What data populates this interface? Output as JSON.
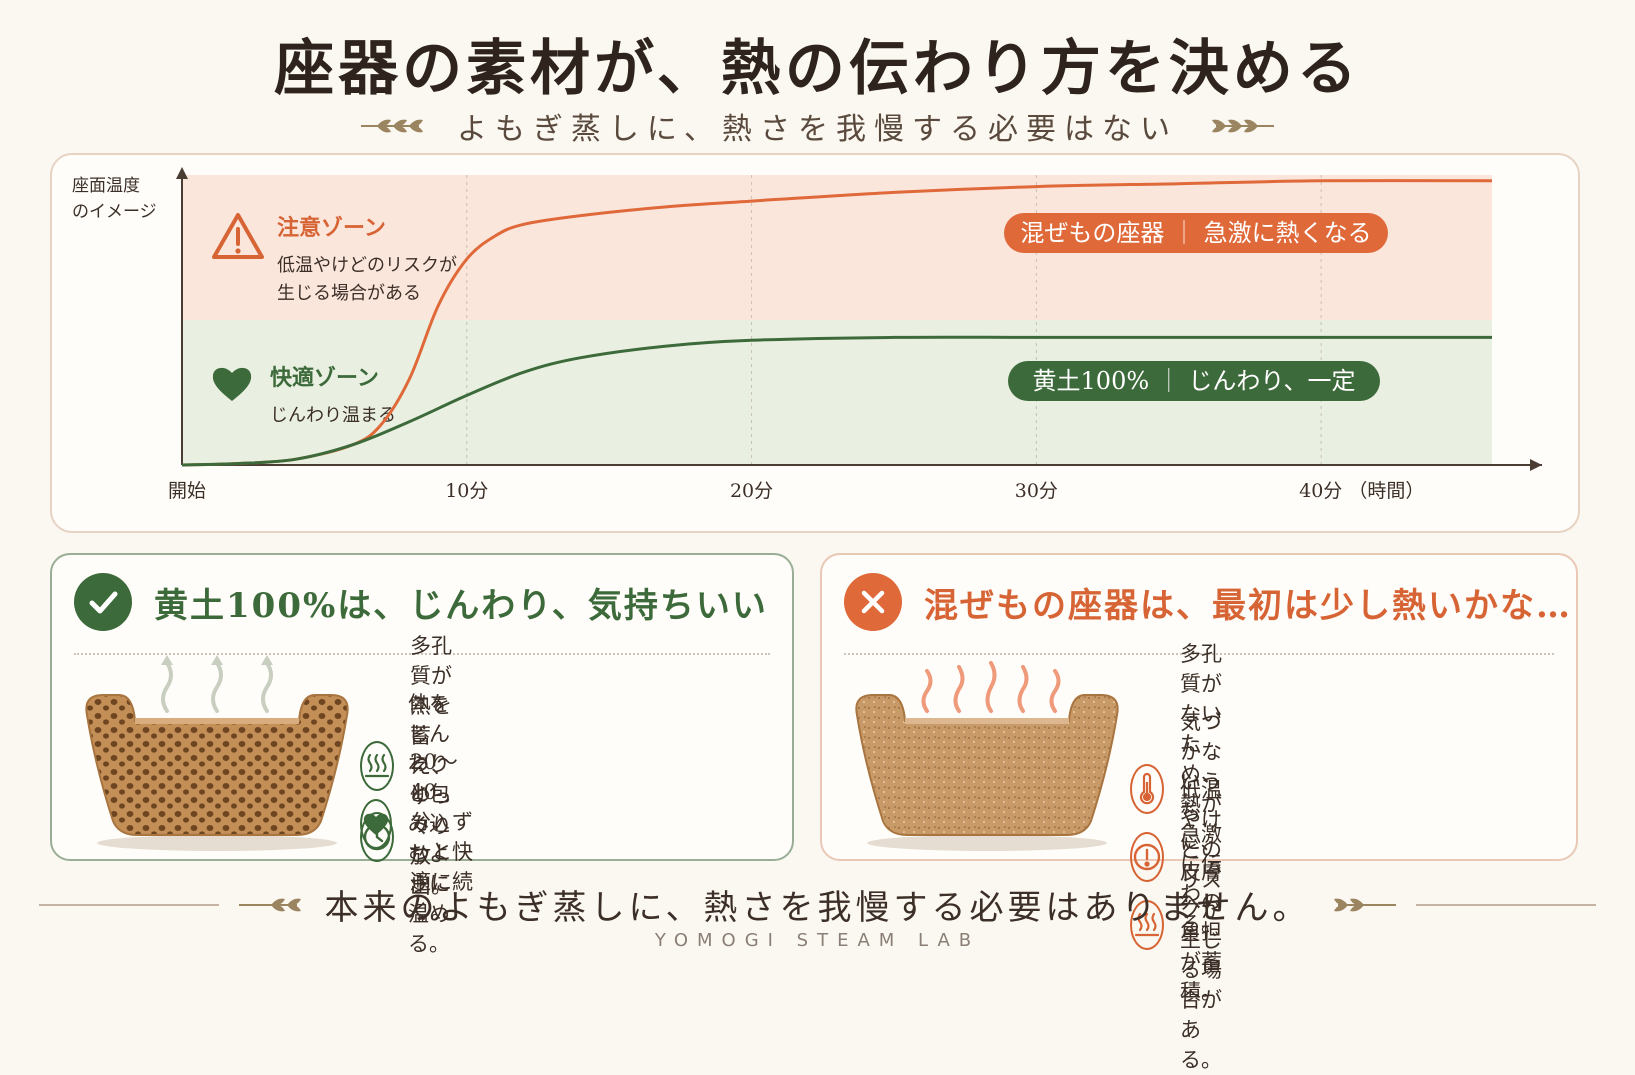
{
  "header": {
    "title": "座器の素材が、熱の伝わり方を決める",
    "subtitle": "よもぎ蒸しに、熱さを我慢する必要はない"
  },
  "colors": {
    "accent_orange": "#e0693a",
    "accent_green": "#3d6a3a",
    "caution_zone": "#fbe6dc",
    "comfort_zone": "#e9f0e2"
  },
  "chart_data": {
    "type": "line",
    "ylabel": "座面温度\nのイメージ",
    "xlabel": "（時間）",
    "x_ticks": [
      "開始",
      "10分",
      "20分",
      "30分",
      "40分"
    ],
    "x_tick_values": [
      0,
      10,
      20,
      30,
      40
    ],
    "xlim": [
      0,
      46
    ],
    "ylim": [
      0,
      100
    ],
    "grid": "vertical-dashed",
    "zones": [
      {
        "name": "注意ゾーン",
        "desc": "低温やけどのリスクが\n生じる場合がある",
        "from": 50,
        "to": 100,
        "icon": "warning-icon"
      },
      {
        "name": "快適ゾーン",
        "desc": "じんわり温まる",
        "from": 0,
        "to": 50,
        "icon": "heart-icon"
      }
    ],
    "series": [
      {
        "name": "混ぜもの座器",
        "tag": "急激に熱くなる",
        "color": "#e0693a",
        "x": [
          0,
          2,
          4,
          6,
          7,
          8,
          9,
          10,
          11,
          12,
          14,
          17,
          20,
          25,
          30,
          35,
          40,
          46
        ],
        "y": [
          0,
          0.5,
          2,
          7,
          14,
          30,
          55,
          71,
          79,
          83,
          86,
          89,
          91,
          94,
          96,
          97,
          98,
          98
        ]
      },
      {
        "name": "黄土100%",
        "tag": "じんわり、一定",
        "color": "#3d6a3a",
        "x": [
          0,
          2,
          4,
          6,
          8,
          10,
          12,
          14,
          17,
          20,
          25,
          30,
          35,
          40,
          46
        ],
        "y": [
          0,
          0.5,
          2,
          7,
          15,
          24,
          32,
          37,
          41,
          43,
          44,
          44,
          44,
          44,
          44
        ]
      }
    ]
  },
  "left_panel": {
    "title": "黄土100%は、じんわり、気持ちいい",
    "icon": "check-icon",
    "points": [
      {
        "icon": "heat-waves-icon",
        "text": "多孔質が熱を蓄え、ゆっくり放出。"
      },
      {
        "icon": "heart-icon",
        "text": "体をじんわりと包み込むように温める。"
      },
      {
        "icon": "clock-icon",
        "text": "20〜40分、ずっと快適に続く。"
      }
    ]
  },
  "right_panel": {
    "title": "混ぜもの座器は、最初は少し熱いかな…",
    "icon": "cross-icon",
    "points": [
      {
        "icon": "thermometer-icon",
        "text": "多孔質がないため、\n熱が急激に伝わる。"
      },
      {
        "icon": "alert-icon",
        "text": "気づかないうちに、\n皮膚への負担が蓄積。"
      },
      {
        "icon": "heat-waves-icon",
        "text": "低温やけどのリスクが\n生じる場合がある。"
      }
    ]
  },
  "footer": {
    "message": "本来のよもぎ蒸しに、熱さを我慢する必要はありません。",
    "brand": "YOMOGI STEAM LAB"
  }
}
